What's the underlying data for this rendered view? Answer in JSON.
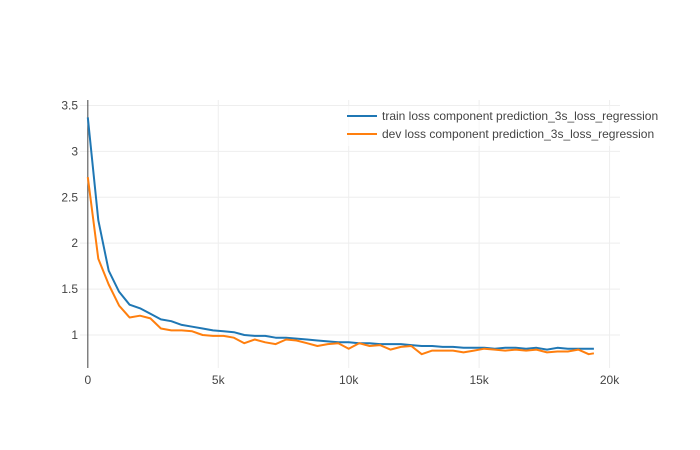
{
  "chart_data": {
    "type": "line",
    "xlim": [
      -300,
      20400
    ],
    "ylim": [
      0.64,
      3.56
    ],
    "xticks": [
      {
        "value": 0,
        "label": "0"
      },
      {
        "value": 5000,
        "label": "5k"
      },
      {
        "value": 10000,
        "label": "10k"
      },
      {
        "value": 15000,
        "label": "15k"
      },
      {
        "value": 20000,
        "label": "20k"
      }
    ],
    "yticks": [
      {
        "value": 1,
        "label": "1"
      },
      {
        "value": 1.5,
        "label": "1.5"
      },
      {
        "value": 2,
        "label": "2"
      },
      {
        "value": 2.5,
        "label": "2.5"
      },
      {
        "value": 3,
        "label": "3"
      },
      {
        "value": 3.5,
        "label": "3.5"
      }
    ],
    "grid": true,
    "legend_position": "top-right",
    "series": [
      {
        "name": "train loss component prediction_3s_loss_regression",
        "color": "#1f77b4",
        "x": [
          0,
          400,
          800,
          1200,
          1600,
          2000,
          2400,
          2800,
          3200,
          3600,
          4000,
          4400,
          4800,
          5200,
          5600,
          6000,
          6400,
          6800,
          7200,
          7600,
          8000,
          8400,
          8800,
          9200,
          9600,
          10000,
          10400,
          10800,
          11200,
          11600,
          12000,
          12400,
          12800,
          13200,
          13600,
          14000,
          14400,
          14800,
          15200,
          15600,
          16000,
          16400,
          16800,
          17200,
          17600,
          18000,
          18400,
          18800,
          19200,
          19400
        ],
        "y": [
          3.37,
          2.25,
          1.7,
          1.47,
          1.33,
          1.29,
          1.23,
          1.17,
          1.15,
          1.11,
          1.09,
          1.07,
          1.05,
          1.04,
          1.03,
          1.0,
          0.99,
          0.99,
          0.97,
          0.97,
          0.96,
          0.95,
          0.94,
          0.93,
          0.92,
          0.92,
          0.91,
          0.91,
          0.9,
          0.9,
          0.9,
          0.89,
          0.88,
          0.88,
          0.87,
          0.87,
          0.86,
          0.86,
          0.86,
          0.85,
          0.86,
          0.86,
          0.85,
          0.86,
          0.84,
          0.86,
          0.85,
          0.85,
          0.85,
          0.85
        ]
      },
      {
        "name": "dev loss component prediction_3s_loss_regression",
        "color": "#ff7f0e",
        "x": [
          0,
          400,
          800,
          1200,
          1600,
          2000,
          2400,
          2800,
          3200,
          3600,
          4000,
          4400,
          4800,
          5200,
          5600,
          6000,
          6400,
          6800,
          7200,
          7600,
          8000,
          8400,
          8800,
          9200,
          9600,
          10000,
          10400,
          10800,
          11200,
          11600,
          12000,
          12400,
          12800,
          13200,
          13600,
          14000,
          14400,
          14800,
          15200,
          15600,
          16000,
          16400,
          16800,
          17200,
          17600,
          18000,
          18400,
          18800,
          19200,
          19400
        ],
        "y": [
          2.72,
          1.83,
          1.55,
          1.32,
          1.19,
          1.21,
          1.18,
          1.07,
          1.05,
          1.05,
          1.04,
          1.0,
          0.99,
          0.99,
          0.97,
          0.91,
          0.95,
          0.92,
          0.9,
          0.95,
          0.94,
          0.91,
          0.88,
          0.9,
          0.91,
          0.85,
          0.91,
          0.88,
          0.89,
          0.84,
          0.87,
          0.88,
          0.79,
          0.83,
          0.83,
          0.83,
          0.81,
          0.83,
          0.85,
          0.84,
          0.83,
          0.84,
          0.83,
          0.84,
          0.81,
          0.82,
          0.82,
          0.84,
          0.79,
          0.8
        ]
      }
    ]
  }
}
